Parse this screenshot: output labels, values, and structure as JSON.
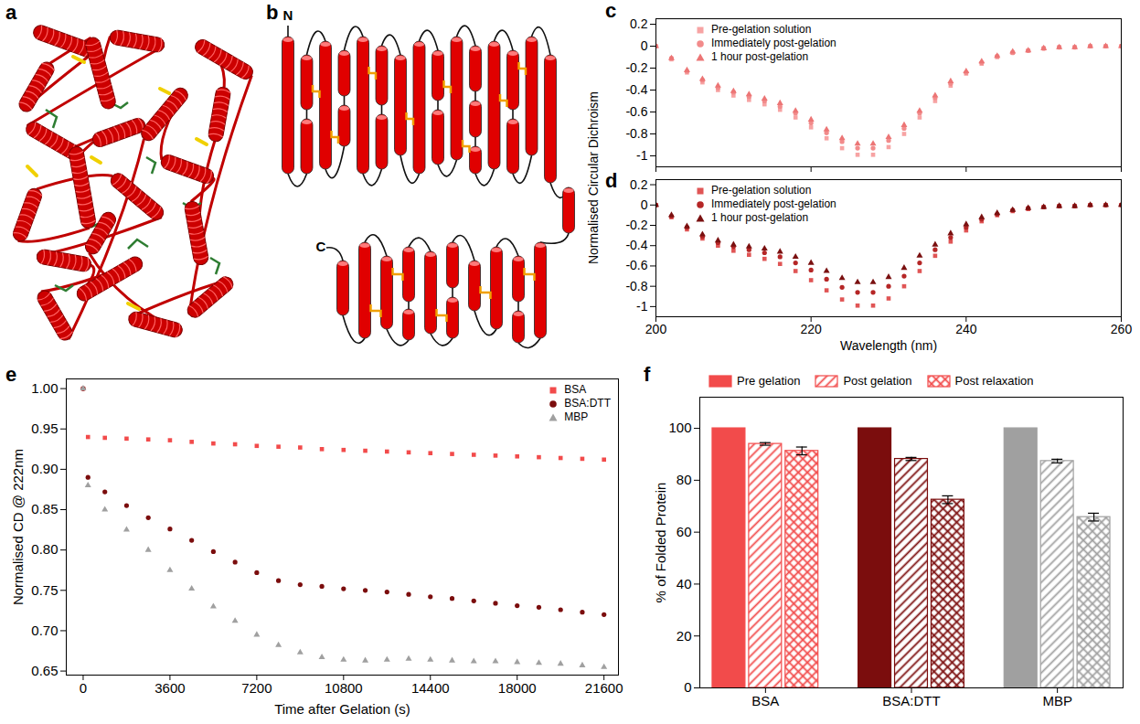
{
  "chart_data": [
    {
      "type": "scatter",
      "panel_label": "c",
      "y_label": "Normalised Circular Dichroism",
      "x": [
        200,
        202,
        204,
        206,
        208,
        210,
        212,
        214,
        216,
        218,
        220,
        222,
        224,
        226,
        228,
        230,
        232,
        234,
        236,
        238,
        240,
        242,
        244,
        246,
        248,
        250,
        252,
        254,
        256,
        258,
        260
      ],
      "xlim": [
        200,
        260
      ],
      "xticks": [
        200,
        220,
        240,
        260
      ],
      "ylim": [
        -1.1,
        0.25
      ],
      "yticks": [
        -1,
        -0.8,
        -0.6,
        -0.4,
        -0.2,
        0,
        0.2
      ],
      "tick_labels": "y",
      "legend": "top-left",
      "series": [
        {
          "name": "Pre-gelation solution",
          "color": "#f7a3a3",
          "marker": "square",
          "values": [
            0,
            -0.12,
            -0.24,
            -0.33,
            -0.4,
            -0.45,
            -0.49,
            -0.53,
            -0.58,
            -0.65,
            -0.74,
            -0.84,
            -0.93,
            -0.99,
            -0.99,
            -0.92,
            -0.8,
            -0.65,
            -0.5,
            -0.36,
            -0.25,
            -0.16,
            -0.1,
            -0.06,
            -0.04,
            -0.02,
            -0.01,
            -0.01,
            0,
            0,
            0
          ]
        },
        {
          "name": "Immediately post-gelation",
          "color": "#f28b8b",
          "marker": "circle",
          "values": [
            0,
            -0.11,
            -0.23,
            -0.31,
            -0.38,
            -0.42,
            -0.46,
            -0.5,
            -0.55,
            -0.61,
            -0.7,
            -0.79,
            -0.87,
            -0.93,
            -0.93,
            -0.86,
            -0.75,
            -0.61,
            -0.47,
            -0.34,
            -0.24,
            -0.15,
            -0.09,
            -0.06,
            -0.04,
            -0.02,
            -0.01,
            -0.01,
            0,
            0,
            0
          ]
        },
        {
          "name": "1 hour post-gelation",
          "color": "#ec7575",
          "marker": "triangle",
          "values": [
            0,
            -0.11,
            -0.22,
            -0.3,
            -0.36,
            -0.41,
            -0.44,
            -0.48,
            -0.52,
            -0.59,
            -0.67,
            -0.76,
            -0.84,
            -0.89,
            -0.89,
            -0.83,
            -0.72,
            -0.59,
            -0.45,
            -0.32,
            -0.23,
            -0.14,
            -0.09,
            -0.05,
            -0.04,
            -0.02,
            -0.01,
            -0.01,
            0,
            0,
            0
          ]
        }
      ]
    },
    {
      "type": "scatter",
      "panel_label": "d",
      "x_label": "Wavelength (nm)",
      "x": [
        200,
        202,
        204,
        206,
        208,
        210,
        212,
        214,
        216,
        218,
        220,
        222,
        224,
        226,
        228,
        230,
        232,
        234,
        236,
        238,
        240,
        242,
        244,
        246,
        248,
        250,
        252,
        254,
        256,
        258,
        260
      ],
      "xlim": [
        200,
        260
      ],
      "xticks": [
        200,
        220,
        240,
        260
      ],
      "ylim": [
        -1.1,
        0.25
      ],
      "yticks": [
        -1,
        -0.8,
        -0.6,
        -0.4,
        -0.2,
        0,
        0.2
      ],
      "legend": "top-left",
      "series": [
        {
          "name": "Pre-gelation solution",
          "color": "#e05555",
          "marker": "square",
          "values": [
            0,
            -0.12,
            -0.24,
            -0.33,
            -0.4,
            -0.45,
            -0.49,
            -0.53,
            -0.58,
            -0.65,
            -0.74,
            -0.84,
            -0.93,
            -0.99,
            -0.99,
            -0.92,
            -0.8,
            -0.65,
            -0.5,
            -0.36,
            -0.25,
            -0.16,
            -0.1,
            -0.06,
            -0.04,
            -0.02,
            -0.01,
            -0.01,
            0,
            0,
            0
          ]
        },
        {
          "name": "Immediately post-gelation",
          "color": "#b52626",
          "marker": "circle",
          "values": [
            0,
            -0.11,
            -0.22,
            -0.31,
            -0.37,
            -0.41,
            -0.44,
            -0.47,
            -0.51,
            -0.57,
            -0.64,
            -0.73,
            -0.81,
            -0.86,
            -0.86,
            -0.8,
            -0.7,
            -0.57,
            -0.44,
            -0.32,
            -0.22,
            -0.14,
            -0.09,
            -0.05,
            -0.03,
            -0.02,
            -0.01,
            -0.01,
            0,
            0,
            0
          ]
        },
        {
          "name": "1 hour post-gelation",
          "color": "#7a1010",
          "marker": "triangle",
          "values": [
            0,
            -0.1,
            -0.21,
            -0.29,
            -0.35,
            -0.39,
            -0.41,
            -0.43,
            -0.46,
            -0.51,
            -0.57,
            -0.65,
            -0.72,
            -0.76,
            -0.76,
            -0.71,
            -0.62,
            -0.5,
            -0.39,
            -0.28,
            -0.19,
            -0.12,
            -0.08,
            -0.05,
            -0.03,
            -0.02,
            -0.01,
            -0.01,
            0,
            0,
            0
          ]
        }
      ]
    },
    {
      "type": "scatter",
      "panel_label": "e",
      "x_label": "Time after Gelation (s)",
      "y_label": "Normalised CD @ 222nm",
      "x": [
        0,
        200,
        900,
        1800,
        2700,
        3600,
        4500,
        5400,
        6300,
        7200,
        8100,
        9000,
        9900,
        10800,
        11700,
        12600,
        13500,
        14400,
        15300,
        16200,
        17100,
        18000,
        18900,
        19800,
        20700,
        21600
      ],
      "xlim": [
        -700,
        22200
      ],
      "xticks": [
        0,
        3600,
        7200,
        10800,
        14400,
        18000,
        21600
      ],
      "ylim": [
        0.645,
        1.012
      ],
      "yticks": [
        0.65,
        {
          "value": 0.7,
          "label": "0.70"
        },
        0.75,
        {
          "value": 0.8,
          "label": "0.80"
        },
        0.85,
        {
          "value": 0.9,
          "label": "0.90"
        },
        0.95,
        {
          "value": 1,
          "label": "1.00"
        }
      ],
      "legend": "top-right",
      "series": [
        {
          "name": "BSA",
          "color": "#f24b4b",
          "marker": "square",
          "values": [
            1,
            0.94,
            0.939,
            0.938,
            0.937,
            0.936,
            0.934,
            0.932,
            0.931,
            0.929,
            0.928,
            0.927,
            0.925,
            0.924,
            0.923,
            0.922,
            0.921,
            0.92,
            0.919,
            0.918,
            0.917,
            0.916,
            0.915,
            0.914,
            0.913,
            0.912
          ]
        },
        {
          "name": "BSA:DTT",
          "color": "#7b0d0d",
          "marker": "circle",
          "values": [
            1,
            0.89,
            0.872,
            0.855,
            0.84,
            0.826,
            0.812,
            0.798,
            0.785,
            0.772,
            0.762,
            0.757,
            0.755,
            0.752,
            0.75,
            0.748,
            0.745,
            0.742,
            0.74,
            0.737,
            0.734,
            0.731,
            0.729,
            0.726,
            0.723,
            0.72
          ]
        },
        {
          "name": "MBP",
          "color": "#a0a0a0",
          "marker": "triangle",
          "values": [
            1,
            0.88,
            0.85,
            0.825,
            0.8,
            0.775,
            0.752,
            0.73,
            0.712,
            0.695,
            0.682,
            0.673,
            0.667,
            0.664,
            0.663,
            0.664,
            0.665,
            0.664,
            0.663,
            0.662,
            0.662,
            0.661,
            0.66,
            0.659,
            0.657,
            0.655
          ]
        }
      ]
    },
    {
      "type": "bar",
      "panel_label": "f",
      "y_label": "% of Folded Protein",
      "categories": [
        "BSA",
        "BSA:DTT",
        "MBP"
      ],
      "colors": [
        "#f24b4b",
        "#7b0d0d",
        "#a0a0a0"
      ],
      "ylim": [
        0,
        112
      ],
      "yticks": [
        0,
        20,
        40,
        60,
        80,
        100
      ],
      "legend": "top",
      "series": [
        {
          "name": "Pre gelation",
          "values": [
            100,
            100,
            100
          ],
          "errors": [
            0,
            0,
            0
          ]
        },
        {
          "name": "Post gelation",
          "values": [
            94,
            88.2,
            87.4
          ],
          "errors": [
            0.5,
            0.6,
            0.7
          ]
        },
        {
          "name": "Post relaxation",
          "values": [
            91.3,
            72.5,
            65.8
          ],
          "errors": [
            1.5,
            1.5,
            1.5
          ]
        }
      ]
    }
  ],
  "structure": {
    "panel_label": "a"
  },
  "topology": {
    "panel_label": "b",
    "n_label": "N",
    "c_label": "C"
  }
}
